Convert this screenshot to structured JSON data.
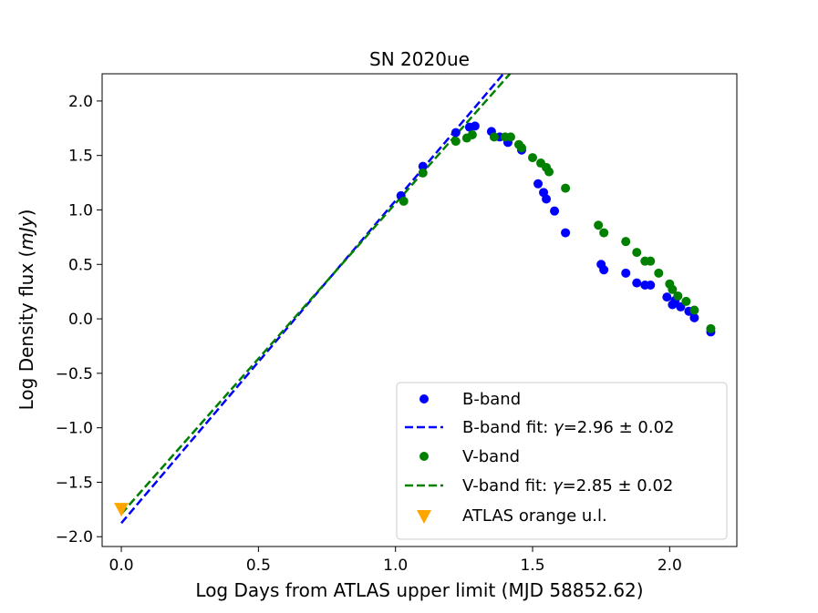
{
  "chart_data": {
    "type": "scatter",
    "title": "SN 2020ue",
    "xlabel": "Log Days from ATLAS upper limit (MJD 58852.62)",
    "ylabel_prefix": "Log Density flux (",
    "ylabel_unit": "mJy",
    "ylabel_suffix": ")",
    "xlim": [
      -0.07,
      2.245
    ],
    "ylim": [
      -2.09,
      2.25
    ],
    "x_ticks": [
      0.0,
      0.5,
      1.0,
      1.5,
      2.0
    ],
    "x_tick_labels": [
      "0.0",
      "0.5",
      "1.0",
      "1.5",
      "2.0"
    ],
    "y_ticks": [
      2.0,
      1.5,
      1.0,
      0.5,
      0.0,
      -0.5,
      -1.0,
      -1.5,
      -2.0
    ],
    "y_tick_labels": [
      "2.0",
      "1.5",
      "1.0",
      "0.5",
      "0.0",
      "−0.5",
      "−1.0",
      "−1.5",
      "−2.0"
    ],
    "grid": false,
    "legend_position": "lower-right",
    "series": [
      {
        "name": "B-band",
        "kind": "points",
        "color": "#0000ff",
        "x": [
          1.02,
          1.1,
          1.22,
          1.27,
          1.29,
          1.35,
          1.38,
          1.41,
          1.46,
          1.52,
          1.54,
          1.55,
          1.58,
          1.62,
          1.75,
          1.76,
          1.84,
          1.88,
          1.91,
          1.93,
          1.99,
          2.01,
          2.02,
          2.04,
          2.07,
          2.09,
          2.15
        ],
        "y": [
          1.13,
          1.4,
          1.71,
          1.76,
          1.77,
          1.72,
          1.67,
          1.62,
          1.55,
          1.24,
          1.16,
          1.1,
          0.99,
          0.79,
          0.5,
          0.45,
          0.42,
          0.33,
          0.31,
          0.31,
          0.2,
          0.13,
          0.17,
          0.11,
          0.07,
          0.01,
          -0.12
        ]
      },
      {
        "name": "B-band fit",
        "kind": "line",
        "color": "#0000ff",
        "label_prefix": "B-band fit: ",
        "label_symbol": "γ",
        "label_value": "=2.96 ± 0.02",
        "slope": 2.96,
        "intercept": -1.875,
        "x_range": [
          0.0,
          1.45
        ]
      },
      {
        "name": "V-band",
        "kind": "points",
        "color": "#008000",
        "x": [
          1.03,
          1.1,
          1.22,
          1.26,
          1.28,
          1.36,
          1.4,
          1.42,
          1.45,
          1.46,
          1.5,
          1.53,
          1.55,
          1.56,
          1.62,
          1.74,
          1.76,
          1.84,
          1.88,
          1.91,
          1.93,
          1.96,
          2.0,
          2.01,
          2.03,
          2.06,
          2.09,
          2.15
        ],
        "y": [
          1.08,
          1.34,
          1.63,
          1.66,
          1.69,
          1.67,
          1.67,
          1.67,
          1.6,
          1.57,
          1.48,
          1.43,
          1.39,
          1.35,
          1.2,
          0.86,
          0.79,
          0.71,
          0.61,
          0.53,
          0.53,
          0.42,
          0.32,
          0.27,
          0.21,
          0.16,
          0.08,
          -0.09
        ]
      },
      {
        "name": "V-band fit",
        "kind": "line",
        "color": "#008000",
        "label_prefix": "V-band fit: ",
        "label_symbol": "γ",
        "label_value": "=2.85 ± 0.02",
        "slope": 2.85,
        "intercept": -1.79,
        "x_range": [
          0.0,
          1.45
        ]
      },
      {
        "name": "ATLAS orange u.l.",
        "kind": "marker",
        "color": "#ffa500",
        "x": [
          0.0
        ],
        "y": [
          -1.74
        ]
      }
    ]
  }
}
